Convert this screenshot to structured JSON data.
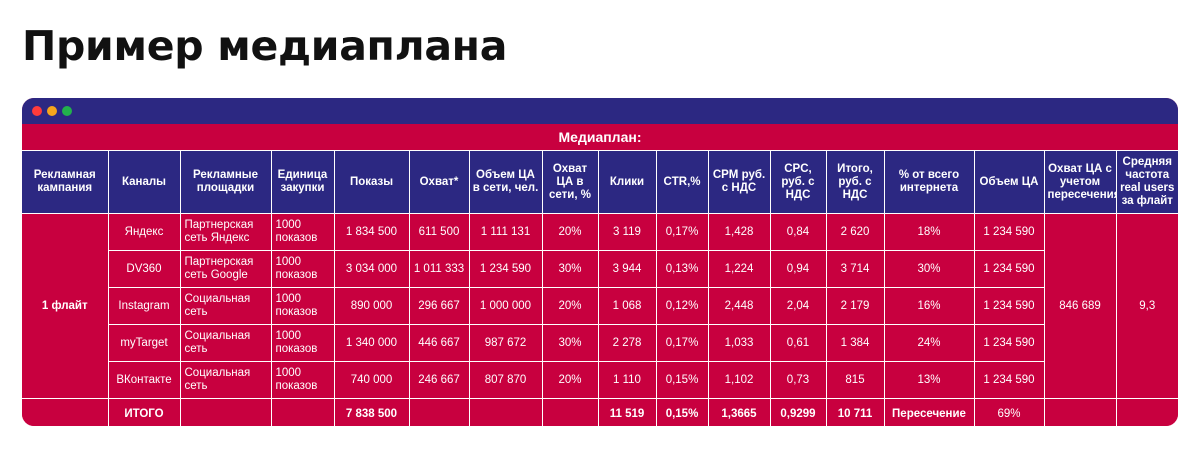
{
  "page": {
    "heading": "Пример медиаплана"
  },
  "window": {
    "controls": [
      "close",
      "minimize",
      "maximize"
    ]
  },
  "table": {
    "caption": "Медиаплан:",
    "columns": [
      "Рекламная кампания",
      "Каналы",
      "Рекламные площадки",
      "Единица закупки",
      "Показы",
      "Охват*",
      "Объем ЦА в сети, чел.",
      "Охват ЦА в сети, %",
      "Клики",
      "CTR,%",
      "CPM руб. с НДС",
      "CPC, руб. с НДС",
      "Итого, руб. с НДС",
      "% от всего интернета",
      "Объем ЦА",
      "Охват ЦА с учетом пересечения",
      "Средняя частота real users за флайт"
    ],
    "campaign": "1 флайт",
    "rows": [
      {
        "channel": "Яндекс",
        "platform": "Партнерская сеть Яндекс",
        "unit": "1000 показов",
        "impressions": "1 834 500",
        "reach": "611 500",
        "ta_volume": "1 111 131",
        "ta_reach_pct": "20%",
        "clicks": "3 119",
        "ctr": "0,17%",
        "cpm": "1,428",
        "cpc": "0,84",
        "total": "2 620",
        "internet_share": "18%",
        "ta_total": "1 234 590"
      },
      {
        "channel": "DV360",
        "platform": "Партнерская сеть Google",
        "unit": "1000 показов",
        "impressions": "3 034 000",
        "reach": "1 011 333",
        "ta_volume": "1 234 590",
        "ta_reach_pct": "30%",
        "clicks": "3 944",
        "ctr": "0,13%",
        "cpm": "1,224",
        "cpc": "0,94",
        "total": "3 714",
        "internet_share": "30%",
        "ta_total": "1 234 590"
      },
      {
        "channel": "Instagram",
        "platform": "Социальная сеть",
        "unit": "1000 показов",
        "impressions": "890 000",
        "reach": "296 667",
        "ta_volume": "1 000 000",
        "ta_reach_pct": "20%",
        "clicks": "1 068",
        "ctr": "0,12%",
        "cpm": "2,448",
        "cpc": "2,04",
        "total": "2 179",
        "internet_share": "16%",
        "ta_total": "1 234 590"
      },
      {
        "channel": "myTarget",
        "platform": "Социальная сеть",
        "unit": "1000 показов",
        "impressions": "1 340 000",
        "reach": "446 667",
        "ta_volume": "987 672",
        "ta_reach_pct": "30%",
        "clicks": "2 278",
        "ctr": "0,17%",
        "cpm": "1,033",
        "cpc": "0,61",
        "total": "1 384",
        "internet_share": "24%",
        "ta_total": "1 234 590"
      },
      {
        "channel": "ВКонтакте",
        "platform": "Социальная сеть",
        "unit": "1000 показов",
        "impressions": "740 000",
        "reach": "246 667",
        "ta_volume": "807 870",
        "ta_reach_pct": "20%",
        "clicks": "1 110",
        "ctr": "0,15%",
        "cpm": "1,102",
        "cpc": "0,73",
        "total": "815",
        "internet_share": "13%",
        "ta_total": "1 234 590"
      }
    ],
    "merged": {
      "ta_reach_dedup": "846 689",
      "avg_frequency": "9,3"
    },
    "totals": {
      "label": "ИТОГО",
      "impressions": "7 838 500",
      "clicks": "11 519",
      "ctr": "0,15%",
      "cpm": "1,3665",
      "cpc": "0,9299",
      "total": "10 711",
      "internet_share": "Пересечение",
      "ta_total": "69%"
    }
  }
}
